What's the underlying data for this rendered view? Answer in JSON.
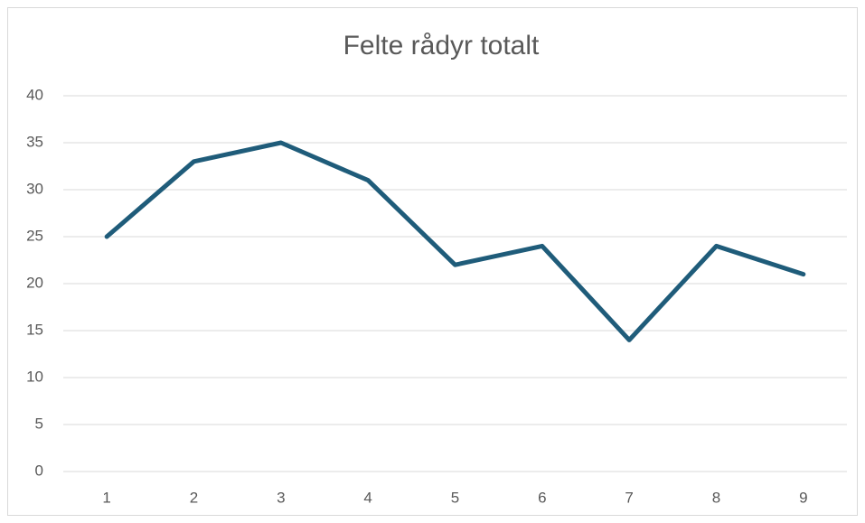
{
  "chart_data": {
    "type": "line",
    "title": "Felte rådyr totalt",
    "categories": [
      "1",
      "2",
      "3",
      "4",
      "5",
      "6",
      "7",
      "8",
      "9"
    ],
    "series": [
      {
        "name": "Felte rådyr totalt",
        "color": "#1f5c7a",
        "values": [
          25,
          33,
          35,
          31,
          22,
          24,
          14,
          24,
          21
        ]
      }
    ],
    "ylim": [
      0,
      40
    ],
    "yticks": [
      0,
      5,
      10,
      15,
      20,
      25,
      30,
      35,
      40
    ],
    "grid": true
  }
}
